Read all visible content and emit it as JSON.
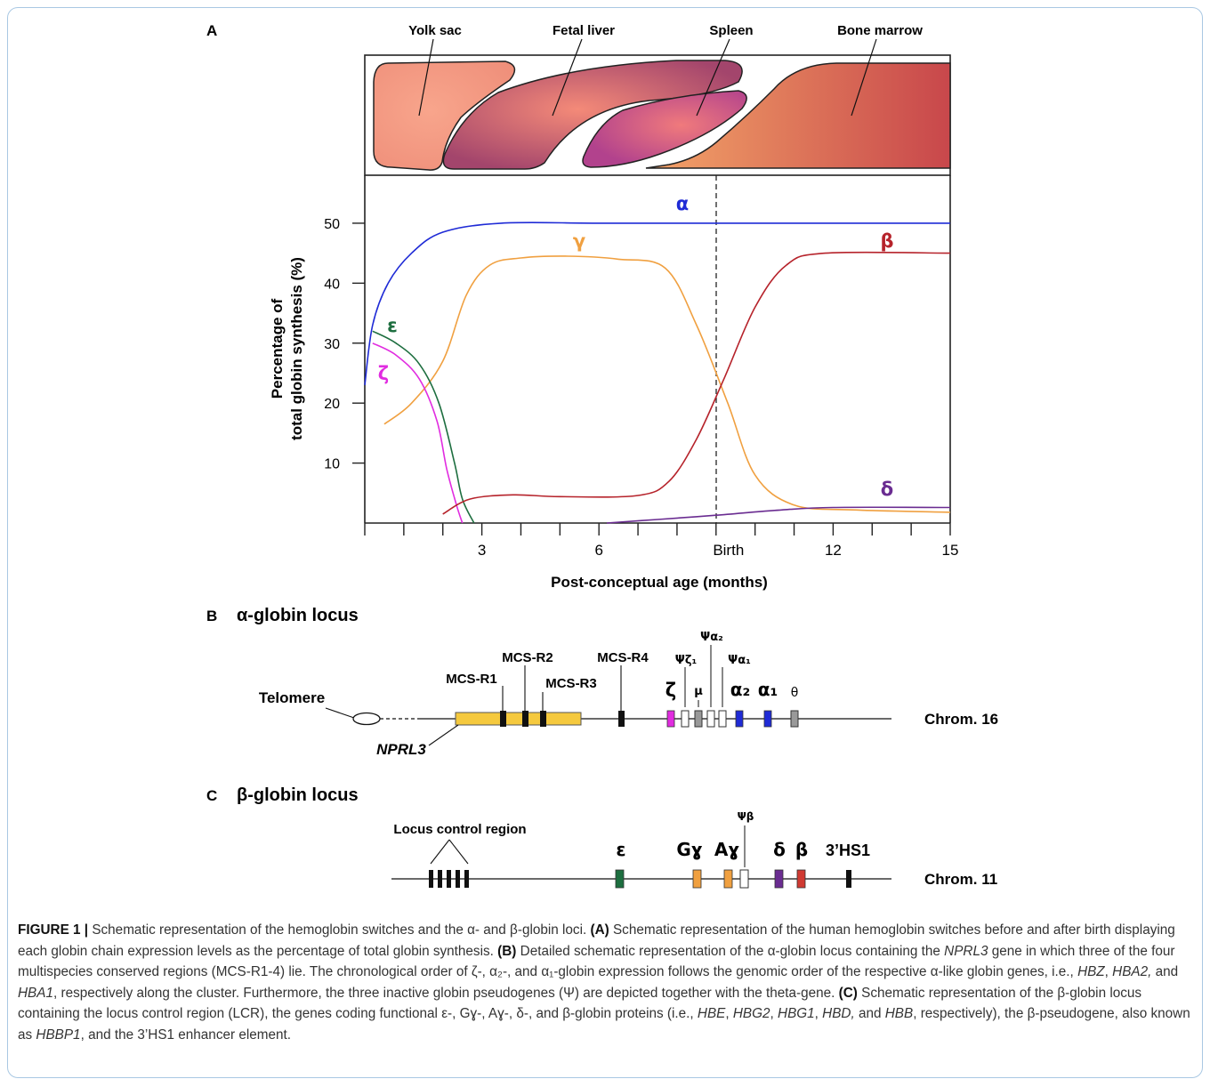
{
  "panel_a": {
    "letter": "A",
    "organs": [
      "Yolk sac",
      "Fetal liver",
      "Spleen",
      "Bone marrow"
    ],
    "ylabel_line1": "Percentage of",
    "ylabel_line2": "total globin synthesis (%)",
    "xlabel": "Post-conceptual age (months)",
    "birth_label": "Birth"
  },
  "chart_data": {
    "type": "line",
    "x_ticks": [
      "3",
      "6",
      "Birth",
      "12",
      "15"
    ],
    "y_ticks": [
      "10",
      "20",
      "30",
      "40",
      "50"
    ],
    "xlim": [
      0,
      15
    ],
    "ylim": [
      0,
      58
    ],
    "series": [
      {
        "name": "α",
        "color": "#1f2bd6",
        "points": [
          [
            0,
            23
          ],
          [
            0.2,
            33
          ],
          [
            0.6,
            40
          ],
          [
            1.2,
            45
          ],
          [
            2,
            48.5
          ],
          [
            3.5,
            50
          ],
          [
            6,
            50
          ],
          [
            9,
            50
          ],
          [
            12,
            50
          ],
          [
            15,
            50
          ]
        ]
      },
      {
        "name": "γ",
        "color": "#f0a040",
        "points": [
          [
            0.5,
            16.5
          ],
          [
            1.2,
            20
          ],
          [
            2,
            27
          ],
          [
            2.6,
            38
          ],
          [
            3.2,
            43
          ],
          [
            4,
            44.2
          ],
          [
            5.2,
            44.5
          ],
          [
            6.5,
            44
          ],
          [
            7.7,
            42.5
          ],
          [
            8.5,
            33
          ],
          [
            9.3,
            20
          ],
          [
            10,
            8
          ],
          [
            11,
            3
          ],
          [
            12.5,
            2.2
          ],
          [
            15,
            1.8
          ]
        ]
      },
      {
        "name": "ε",
        "color": "#1d6e3f",
        "points": [
          [
            0.2,
            32
          ],
          [
            0.8,
            30
          ],
          [
            1.4,
            26.5
          ],
          [
            1.9,
            20
          ],
          [
            2.3,
            10
          ],
          [
            2.5,
            4
          ],
          [
            2.8,
            0
          ]
        ]
      },
      {
        "name": "ζ",
        "color": "#e12ce0",
        "points": [
          [
            0.2,
            30
          ],
          [
            0.8,
            28
          ],
          [
            1.4,
            24
          ],
          [
            1.85,
            17
          ],
          [
            2.1,
            9
          ],
          [
            2.35,
            3
          ],
          [
            2.5,
            0
          ]
        ]
      },
      {
        "name": "β",
        "color": "#b6232b",
        "points": [
          [
            2,
            1.5
          ],
          [
            2.7,
            4
          ],
          [
            3.8,
            4.7
          ],
          [
            5,
            4.4
          ],
          [
            7,
            4.6
          ],
          [
            7.8,
            7
          ],
          [
            8.5,
            14
          ],
          [
            9.2,
            24
          ],
          [
            10,
            36
          ],
          [
            10.8,
            43
          ],
          [
            11.8,
            45
          ],
          [
            15,
            45
          ]
        ]
      },
      {
        "name": "δ",
        "color": "#6a2c91",
        "points": [
          [
            6.2,
            0
          ],
          [
            7.5,
            0.6
          ],
          [
            9,
            1.3
          ],
          [
            10.5,
            2.1
          ],
          [
            12,
            2.6
          ],
          [
            15,
            2.6
          ]
        ]
      }
    ],
    "annotations": [
      "Birth"
    ]
  },
  "panel_b": {
    "letter": "B",
    "title": "α-globin locus",
    "telomere": "Telomere",
    "nprl3": "NPRL3",
    "chrom": "Chrom. 16",
    "labels": {
      "mcs_r1": "MCS-R1",
      "mcs_r2": "MCS-R2",
      "mcs_r3": "MCS-R3",
      "mcs_r4": "MCS-R4",
      "zeta": "ζ",
      "psi_zeta1": "Ψζ₁",
      "mu": "μ",
      "psi_alpha2": "Ψα₂",
      "psi_alpha1": "Ψα₁",
      "alpha2": "α₂",
      "alpha1": "α₁",
      "theta": "θ"
    }
  },
  "panel_c": {
    "letter": "C",
    "title": "β-globin locus",
    "lcr": "Locus control region",
    "chrom": "Chrom. 11",
    "labels": {
      "epsilon": "ε",
      "g_gamma": "Gɣ",
      "a_gamma": "Aɣ",
      "psi_beta": "Ψβ",
      "delta": "δ",
      "beta": "β",
      "hs1": "3’HS1"
    }
  },
  "caption": {
    "label": "FIGURE 1 |",
    "t1": " Schematic representation of the hemoglobin switches and the α- and β-globin loci. ",
    "a_label": "(A)",
    "t2": " Schematic representation of the human hemoglobin switches before and after birth displaying each globin chain expression levels as the percentage of total globin synthesis. ",
    "b_label": "(B)",
    "t3": " Detailed schematic representation of the α-globin locus containing the ",
    "nprl3": "NPRL3",
    "t4": " gene in which three of the four multispecies conserved regions (MCS-R1-4) lie. The chronological order of ζ-, α₂-, and α₁-globin expression follows the genomic order of the respective α-like globin genes, i.e., ",
    "hbz": "HBZ",
    "c1": ", ",
    "hba2": "HBA2,",
    "c2": " and ",
    "hba1": "HBA1",
    "t5": ", respectively along the cluster. Furthermore, the three inactive globin pseudogenes (Ψ) are depicted together with the theta-gene. ",
    "c_label": "(C)",
    "t6": " Schematic representation of the β-globin locus containing the locus control region (LCR), the genes coding functional ε-, Gɣ-, Aɣ-, δ-, and β-globin proteins (i.e., ",
    "hbe": "HBE",
    "c3": ", ",
    "hbg2": "HBG2",
    "c4": ", ",
    "hbg1": "HBG1",
    "c5": ", ",
    "hbd": "HBD,",
    "c6": " and ",
    "hbb": "HBB",
    "t7": ", respectively), the β-pseudogene, also known as ",
    "hbbp1": "HBBP1",
    "t8": ", and the 3’HS1 enhancer element."
  }
}
